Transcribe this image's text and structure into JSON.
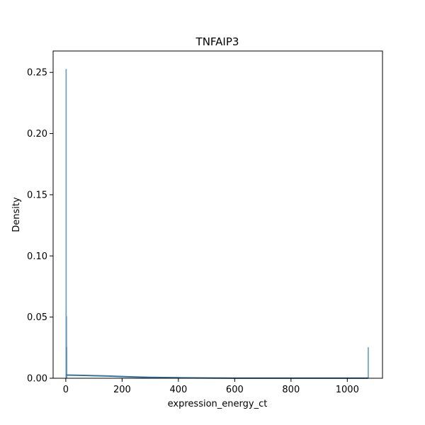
{
  "chart_data": {
    "type": "histogram",
    "title": "TNFAIP3",
    "xlabel": "expression_energy_ct",
    "ylabel": "Density",
    "xlim": [
      -45,
      1125
    ],
    "ylim": [
      0,
      0.2675
    ],
    "xticks": [
      {
        "value": 0,
        "label": "0"
      },
      {
        "value": 200,
        "label": "200"
      },
      {
        "value": 400,
        "label": "400"
      },
      {
        "value": 600,
        "label": "600"
      },
      {
        "value": 800,
        "label": "800"
      },
      {
        "value": 1000,
        "label": "1000"
      }
    ],
    "yticks": [
      {
        "value": 0.0,
        "label": "0.00"
      },
      {
        "value": 0.05,
        "label": "0.05"
      },
      {
        "value": 0.1,
        "label": "0.10"
      },
      {
        "value": 0.15,
        "label": "0.15"
      },
      {
        "value": 0.2,
        "label": "0.20"
      },
      {
        "value": 0.25,
        "label": "0.25"
      }
    ],
    "grid": false,
    "legend": "none",
    "bar_color": "#a3bfd3",
    "line_color": "#3274a1",
    "bins": [
      {
        "x0": 0,
        "x1": 1,
        "density": 0.2526
      },
      {
        "x0": 1,
        "x1": 2,
        "density": 0.0503
      },
      {
        "x0": 2,
        "x1": 3,
        "density": 0.0251
      },
      {
        "x0": 1073,
        "x1": 1074,
        "density": 0.0251
      }
    ],
    "kde": {
      "x": [
        0,
        50,
        100,
        150,
        200,
        250,
        300,
        400,
        500,
        600,
        700,
        800,
        900,
        1000,
        1074
      ],
      "y": [
        0.0026,
        0.0024,
        0.0021,
        0.0018,
        0.0014,
        0.001,
        0.0007,
        0.0004,
        0.0002,
        0.0001,
        0.0001,
        0.0001,
        0.0001,
        0.0001,
        0.0001
      ]
    }
  }
}
